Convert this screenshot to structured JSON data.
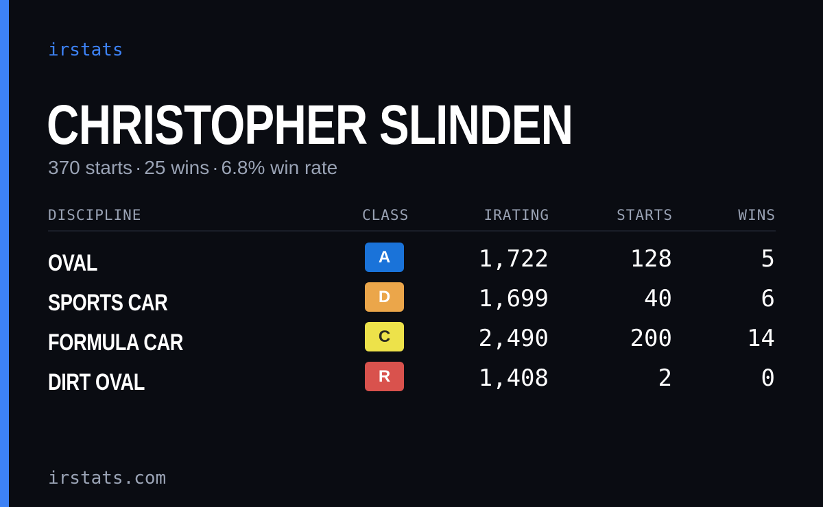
{
  "brand": {
    "name": "irstats",
    "accent_color": "#3d82f6"
  },
  "driver": {
    "name": "CHRISTOPHER SLINDEN",
    "summary": {
      "starts": "370 starts",
      "wins": "25 wins",
      "win_rate": "6.8% win rate",
      "separator": "·"
    }
  },
  "table": {
    "headers": {
      "discipline": "DISCIPLINE",
      "class": "CLASS",
      "irating": "IRATING",
      "starts": "STARTS",
      "wins": "WINS"
    },
    "rows": [
      {
        "discipline": "OVAL",
        "class": "A",
        "class_color": "#1a73d9",
        "class_text_color": "#ffffff",
        "irating": "1,722",
        "starts": "128",
        "wins": "5"
      },
      {
        "discipline": "SPORTS CAR",
        "class": "D",
        "class_color": "#eba64a",
        "class_text_color": "#ffffff",
        "irating": "1,699",
        "starts": "40",
        "wins": "6"
      },
      {
        "discipline": "FORMULA CAR",
        "class": "C",
        "class_color": "#ede24a",
        "class_text_color": "#2a2a20",
        "irating": "2,490",
        "starts": "200",
        "wins": "14"
      },
      {
        "discipline": "DIRT OVAL",
        "class": "R",
        "class_color": "#d9524d",
        "class_text_color": "#ffffff",
        "irating": "1,408",
        "starts": "2",
        "wins": "0"
      }
    ]
  },
  "footer": {
    "url": "irstats.com"
  }
}
